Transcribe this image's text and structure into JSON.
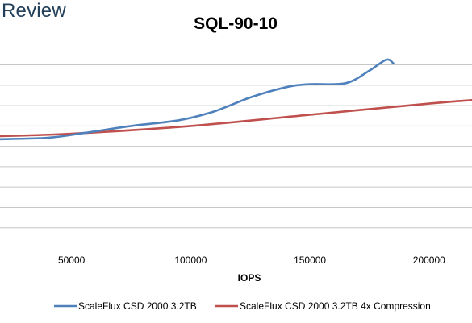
{
  "brand": {
    "label": "Review"
  },
  "chart_data": {
    "type": "line",
    "title": "SQL-90-10",
    "xlabel": "IOPS",
    "ylabel": "",
    "xlim": [
      20000,
      218000
    ],
    "ylim": [
      0,
      11
    ],
    "x_ticks": [
      50000,
      100000,
      150000,
      200000
    ],
    "x_tick_labels": [
      "50000",
      "100000",
      "150000",
      "200000"
    ],
    "y_gridlines": [
      1,
      2,
      3,
      4,
      5,
      6,
      7,
      8,
      9
    ],
    "grid": true,
    "legend_position": "bottom",
    "series": [
      {
        "name": "ScaleFlux CSD 2000 3.2TB",
        "color": "#4f81bd",
        "points": [
          [
            20000,
            5.35
          ],
          [
            40000,
            5.42
          ],
          [
            55000,
            5.65
          ],
          [
            75000,
            6.0
          ],
          [
            95000,
            6.28
          ],
          [
            110000,
            6.72
          ],
          [
            125000,
            7.4
          ],
          [
            140000,
            7.9
          ],
          [
            150000,
            8.05
          ],
          [
            165000,
            8.1
          ],
          [
            175000,
            8.72
          ],
          [
            182000,
            9.25
          ],
          [
            185000,
            9.08
          ]
        ]
      },
      {
        "name": "ScaleFlux CSD 2000 3.2TB 4x Compression",
        "color": "#c0504d",
        "points": [
          [
            20000,
            5.5
          ],
          [
            50000,
            5.62
          ],
          [
            100000,
            6.0
          ],
          [
            150000,
            6.55
          ],
          [
            200000,
            7.1
          ],
          [
            218000,
            7.27
          ]
        ]
      }
    ]
  }
}
